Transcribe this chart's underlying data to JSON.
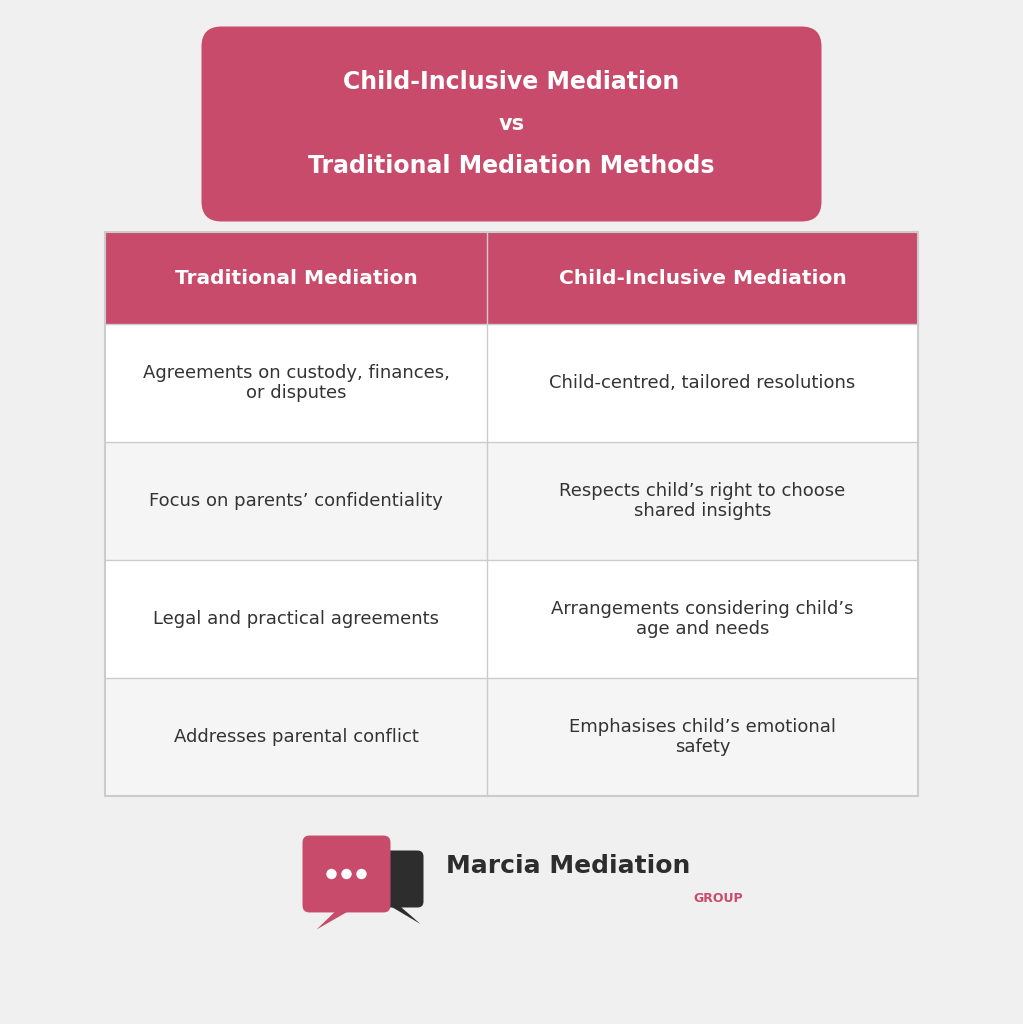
{
  "bg_color": "#f0f0f0",
  "title_lines": [
    "Child-Inclusive Mediation",
    "vs",
    "Traditional Mediation Methods"
  ],
  "title_bg_color": "#c94b6b",
  "title_text_color": "#ffffff",
  "header_bg_color": "#c94b6b",
  "header_text_color": "#ffffff",
  "col1_header": "Traditional Mediation",
  "col2_header": "Child-Inclusive Mediation",
  "rows": [
    [
      "Agreements on custody, finances,\nor disputes",
      "Child-centred, tailored resolutions"
    ],
    [
      "Focus on parents’ confidentiality",
      "Respects child’s right to choose\nshared insights"
    ],
    [
      "Legal and practical agreements",
      "Arrangements considering child’s\nage and needs"
    ],
    [
      "Addresses parental conflict",
      "Emphasises child’s emotional\nsafety"
    ]
  ],
  "row_bg_colors": [
    "#ffffff",
    "#f5f5f5",
    "#ffffff",
    "#f5f5f5"
  ],
  "cell_text_color": "#333333",
  "grid_color": "#cccccc",
  "logo_text_main": "Marcia Mediation",
  "logo_text_sub": "GROUP",
  "logo_text_color": "#2d2d2d",
  "logo_group_color": "#c94b6b",
  "logo_bubble_color": "#c94b6b",
  "logo_bubble2_color": "#2d2d2d"
}
